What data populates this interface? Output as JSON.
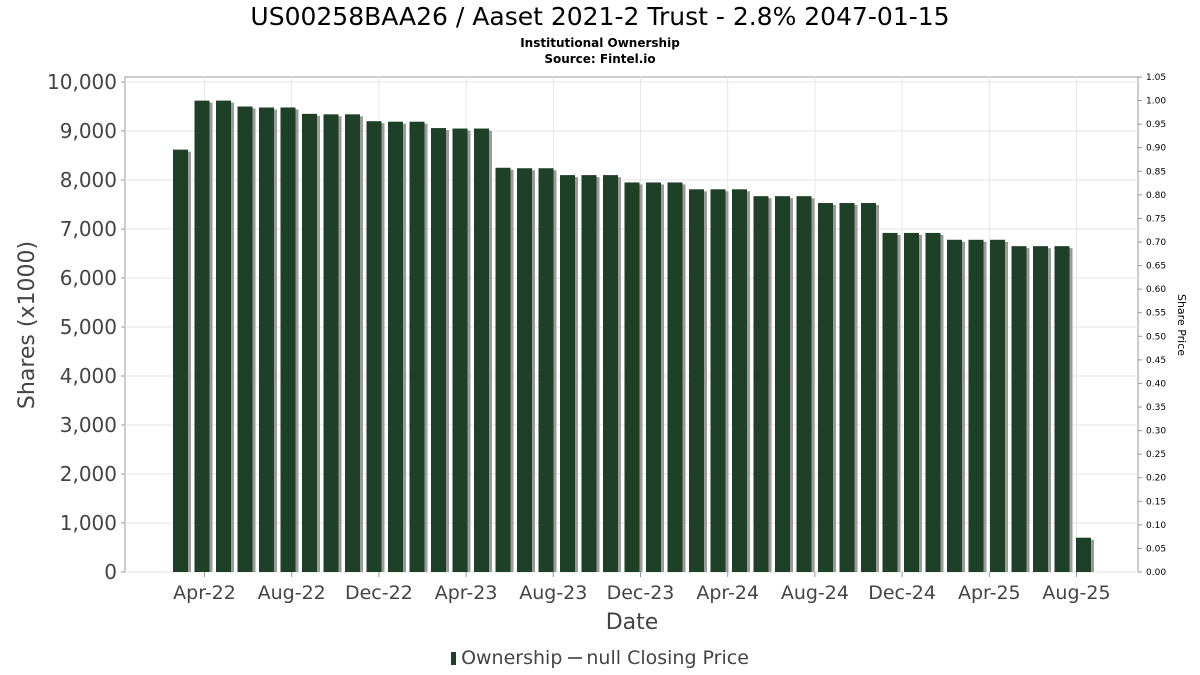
{
  "chart_data": {
    "type": "bar",
    "title": "US00258BAA26 / Aaset 2021-2 Trust - 2.8% 2047-01-15",
    "subtitle": "Institutional Ownership",
    "source": "Source: Fintel.io",
    "xlabel": "Date",
    "ylabel": "Shares (x1000)",
    "y2label": "Share Price",
    "ylim": [
      0,
      10000
    ],
    "y2lim": [
      0,
      1.05
    ],
    "yticks": [
      "0",
      "1,000",
      "2,000",
      "3,000",
      "4,000",
      "5,000",
      "6,000",
      "7,000",
      "8,000",
      "9,000",
      "10,000"
    ],
    "y2ticks": [
      "0.00",
      "0.05",
      "0.10",
      "0.15",
      "0.20",
      "0.25",
      "0.30",
      "0.35",
      "0.40",
      "0.45",
      "0.50",
      "0.55",
      "0.60",
      "0.65",
      "0.70",
      "0.75",
      "0.80",
      "0.85",
      "0.90",
      "0.95",
      "1.00",
      "1.05"
    ],
    "xticks": [
      "Apr-22",
      "Aug-22",
      "Dec-22",
      "Apr-23",
      "Aug-23",
      "Dec-23",
      "Apr-24",
      "Aug-24",
      "Dec-24",
      "Apr-25",
      "Aug-25"
    ],
    "grid": true,
    "legend_position": "bottom",
    "series": [
      {
        "name": "Ownership",
        "color": "#1e4026",
        "values": [
          8620,
          9620,
          9620,
          9500,
          9480,
          9480,
          9350,
          9340,
          9340,
          9200,
          9190,
          9190,
          9060,
          9050,
          9050,
          8250,
          8240,
          8240,
          8100,
          8100,
          8100,
          7950,
          7950,
          7950,
          7810,
          7810,
          7810,
          7670,
          7670,
          7670,
          7530,
          7530,
          7530,
          6920,
          6920,
          6920,
          6780,
          6780,
          6780,
          6650,
          6650,
          6650,
          700
        ]
      }
    ],
    "legend": {
      "ownership_label": "Ownership",
      "price_label": "null Closing Price"
    }
  }
}
